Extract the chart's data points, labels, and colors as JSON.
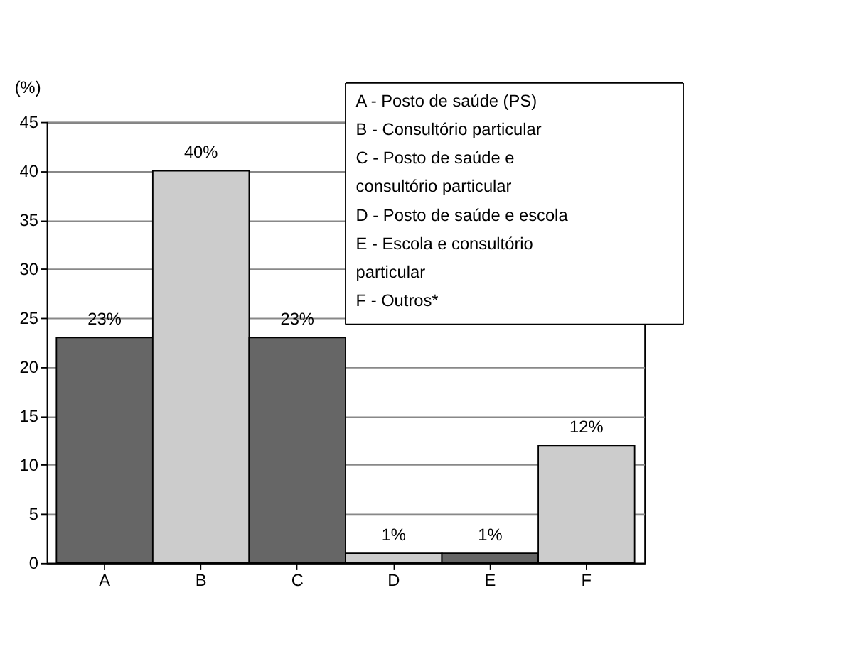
{
  "chart_data": {
    "type": "bar",
    "ylabel": "(%)",
    "categories": [
      "A",
      "B",
      "C",
      "D",
      "E",
      "F"
    ],
    "values": [
      23,
      40,
      23,
      1,
      1,
      12
    ],
    "colors": [
      "#666666",
      "#cccccc",
      "#666666",
      "#cccccc",
      "#666666",
      "#cccccc"
    ],
    "value_labels": [
      "23%",
      "40%",
      "23%",
      "1%",
      "1%",
      "12%"
    ],
    "ylim": [
      0,
      45
    ],
    "yticks": [
      0,
      5,
      10,
      15,
      20,
      25,
      30,
      35,
      40,
      45
    ],
    "grid": "y",
    "annotations": [
      "A - Posto de saúde (PS)",
      "B - Consultório particular",
      "C - Posto de saúde e\n     consultório particular",
      "D - Posto de saúde e escola",
      "E - Escola e consultório\n     particular",
      "F - Outros*"
    ]
  }
}
